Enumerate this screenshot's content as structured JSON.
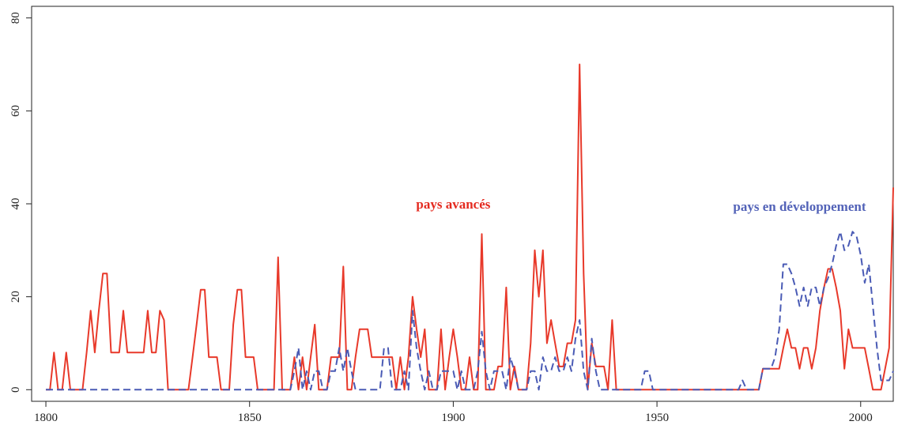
{
  "chart_data": {
    "type": "line",
    "annotations": [
      {
        "text": "pays avancés",
        "color": "#e42a1f",
        "x": 1900,
        "y": 39
      },
      {
        "text": "pays en développement",
        "color": "#5363b8",
        "x": 1985,
        "y": 38.5
      }
    ],
    "x": [
      1800,
      1801,
      1802,
      1803,
      1804,
      1805,
      1806,
      1807,
      1808,
      1809,
      1810,
      1811,
      1812,
      1813,
      1814,
      1815,
      1816,
      1817,
      1818,
      1819,
      1820,
      1821,
      1822,
      1823,
      1824,
      1825,
      1826,
      1827,
      1828,
      1829,
      1830,
      1831,
      1832,
      1833,
      1834,
      1835,
      1836,
      1837,
      1838,
      1839,
      1840,
      1841,
      1842,
      1843,
      1844,
      1845,
      1846,
      1847,
      1848,
      1849,
      1850,
      1851,
      1852,
      1853,
      1854,
      1855,
      1856,
      1857,
      1858,
      1859,
      1860,
      1861,
      1862,
      1863,
      1864,
      1865,
      1866,
      1867,
      1868,
      1869,
      1870,
      1871,
      1872,
      1873,
      1874,
      1875,
      1876,
      1877,
      1878,
      1879,
      1880,
      1881,
      1882,
      1883,
      1884,
      1885,
      1886,
      1887,
      1888,
      1889,
      1890,
      1891,
      1892,
      1893,
      1894,
      1895,
      1896,
      1897,
      1898,
      1899,
      1900,
      1901,
      1902,
      1903,
      1904,
      1905,
      1906,
      1907,
      1908,
      1909,
      1910,
      1911,
      1912,
      1913,
      1914,
      1915,
      1916,
      1917,
      1918,
      1919,
      1920,
      1921,
      1922,
      1923,
      1924,
      1925,
      1926,
      1927,
      1928,
      1929,
      1930,
      1931,
      1932,
      1933,
      1934,
      1935,
      1936,
      1937,
      1938,
      1939,
      1940,
      1941,
      1942,
      1943,
      1944,
      1945,
      1946,
      1947,
      1948,
      1949,
      1950,
      1951,
      1952,
      1953,
      1954,
      1955,
      1956,
      1957,
      1958,
      1959,
      1960,
      1961,
      1962,
      1963,
      1964,
      1965,
      1966,
      1967,
      1968,
      1969,
      1970,
      1971,
      1972,
      1973,
      1974,
      1975,
      1976,
      1977,
      1978,
      1979,
      1980,
      1981,
      1982,
      1983,
      1984,
      1985,
      1986,
      1987,
      1988,
      1989,
      1990,
      1991,
      1992,
      1993,
      1994,
      1995,
      1996,
      1997,
      1998,
      1999,
      2000,
      2001,
      2002,
      2003,
      2004,
      2005,
      2006,
      2007,
      2008
    ],
    "series": [
      {
        "color": "#e8392a",
        "dash": false,
        "values": [
          0,
          0,
          8,
          0,
          0,
          8,
          0,
          0,
          0,
          0,
          8,
          17,
          8,
          17,
          25,
          25,
          8,
          8,
          8,
          17,
          8,
          8,
          8,
          8,
          8,
          17,
          8,
          8,
          17,
          15,
          0,
          0,
          0,
          0,
          0,
          0,
          7,
          14,
          21.5,
          21.5,
          7,
          7,
          7,
          0,
          0,
          0,
          14,
          21.5,
          21.5,
          7,
          7,
          7,
          0,
          0,
          0,
          0,
          0,
          28.5,
          0,
          0,
          0,
          7,
          0,
          7,
          0,
          7,
          14,
          0,
          0,
          0,
          7,
          7,
          7,
          26.5,
          0,
          0,
          7,
          13,
          13,
          13,
          7,
          7,
          7,
          7,
          7,
          7,
          0,
          7,
          0,
          7,
          20,
          13,
          7,
          13,
          0,
          0,
          0,
          13,
          0,
          7,
          13,
          7,
          0,
          0,
          7,
          0,
          0,
          33.5,
          0,
          0,
          0,
          5,
          5,
          22,
          0,
          5,
          0,
          0,
          0,
          10,
          30,
          20,
          30,
          10,
          15,
          10,
          5,
          5,
          10,
          10,
          15,
          70,
          25,
          0,
          10,
          5,
          5,
          5,
          0,
          15,
          0,
          0,
          0,
          0,
          0,
          0,
          0,
          0,
          0,
          0,
          0,
          0,
          0,
          0,
          0,
          0,
          0,
          0,
          0,
          0,
          0,
          0,
          0,
          0,
          0,
          0,
          0,
          0,
          0,
          0,
          0,
          0,
          0,
          0,
          0,
          0,
          4.5,
          4.5,
          4.5,
          4.5,
          4.5,
          9,
          13,
          9,
          9,
          4.5,
          9,
          9,
          4.5,
          9,
          17,
          22,
          26,
          26,
          22,
          17,
          4.5,
          13,
          9,
          9,
          9,
          9,
          4.5,
          0,
          0,
          0,
          4.5,
          9,
          43.5
        ]
      },
      {
        "color": "#4a5bb5",
        "dash": true,
        "values": [
          0,
          0,
          0,
          0,
          0,
          0,
          0,
          0,
          0,
          0,
          0,
          0,
          0,
          0,
          0,
          0,
          0,
          0,
          0,
          0,
          0,
          0,
          0,
          0,
          0,
          0,
          0,
          0,
          0,
          0,
          0,
          0,
          0,
          0,
          0,
          0,
          0,
          0,
          0,
          0,
          0,
          0,
          0,
          0,
          0,
          0,
          0,
          0,
          0,
          0,
          0,
          0,
          0,
          0,
          0,
          0,
          0,
          0,
          0,
          0,
          0,
          4,
          9,
          0,
          4,
          0,
          4,
          4,
          0,
          0,
          4,
          4,
          9,
          4,
          9,
          4,
          0,
          0,
          0,
          0,
          0,
          0,
          0,
          9,
          9,
          0,
          0,
          0,
          4,
          0,
          17,
          9,
          4,
          0,
          4,
          0,
          0,
          4,
          4,
          4,
          4,
          0,
          4,
          0,
          0,
          0,
          4,
          12.5,
          4,
          0,
          4,
          4,
          4,
          0,
          7,
          4,
          0,
          0,
          0,
          4,
          4,
          0,
          7,
          4,
          4,
          7,
          4,
          4,
          7,
          4,
          11,
          15,
          4,
          0,
          11,
          4,
          0,
          0,
          0,
          0,
          0,
          0,
          0,
          0,
          0,
          0,
          0,
          4,
          4,
          0,
          0,
          0,
          0,
          0,
          0,
          0,
          0,
          0,
          0,
          0,
          0,
          0,
          0,
          0,
          0,
          0,
          0,
          0,
          0,
          0,
          0,
          2,
          0,
          0,
          0,
          0,
          4.5,
          4.5,
          4.5,
          7,
          13,
          27,
          27,
          25,
          22,
          18,
          22,
          18,
          22,
          22,
          18,
          22,
          24,
          27,
          31,
          34,
          30,
          31,
          34,
          33,
          29,
          23,
          27,
          18,
          9,
          2,
          2,
          2,
          4
        ]
      }
    ],
    "xlim": [
      1796.5,
      2008
    ],
    "xticks": [
      1800,
      1850,
      1900,
      1950,
      2000
    ],
    "ylim": [
      -2.5,
      82.5
    ],
    "yticks": [
      0,
      20,
      40,
      60,
      80
    ]
  }
}
